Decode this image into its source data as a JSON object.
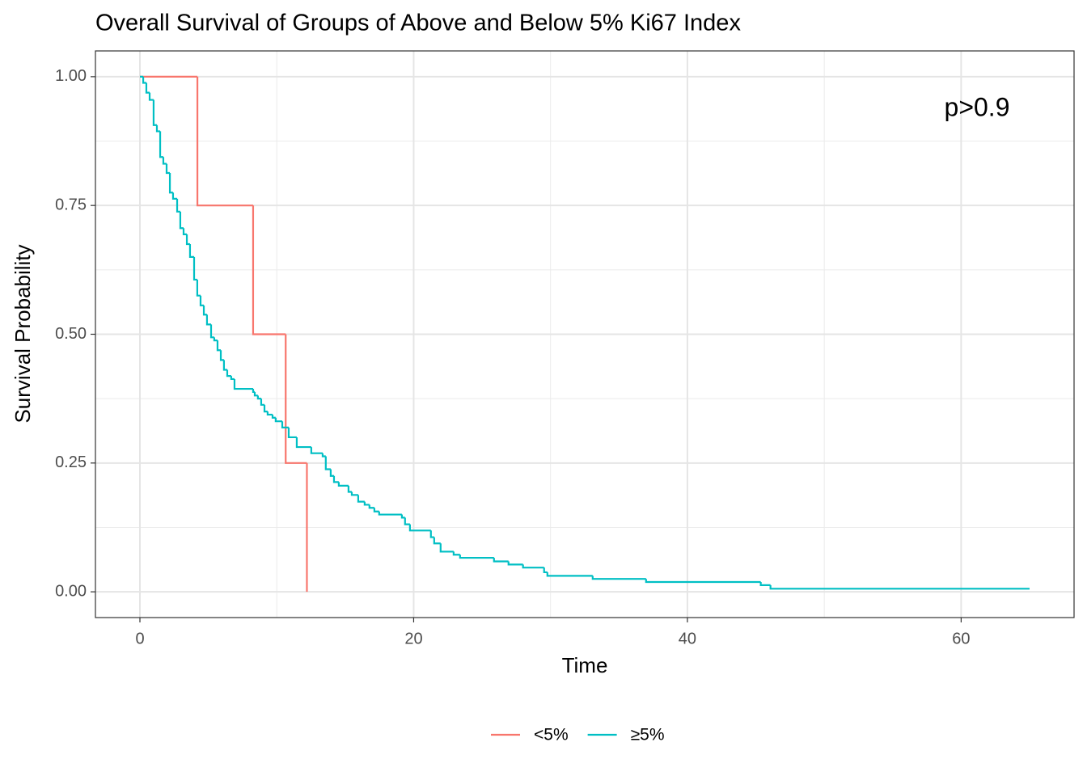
{
  "chart_data": {
    "type": "step",
    "title": "Overall Survival of Groups of Above and Below 5% Ki67 Index",
    "x_label": "Time",
    "y_label": "Survival Probability",
    "annotation": "p>0.9",
    "xlim": [
      -3.25,
      68.25
    ],
    "xticks": [
      0,
      20,
      40,
      60
    ],
    "ylim": [
      -0.05,
      1.05
    ],
    "yticks": [
      {
        "value": 0,
        "label": "0.00"
      },
      {
        "value": 0.25,
        "label": "0.25"
      },
      {
        "value": 0.5,
        "label": "0.50"
      },
      {
        "value": 0.75,
        "label": "0.75"
      },
      {
        "value": 1,
        "label": "1.00"
      }
    ],
    "grid": true,
    "legend": "bottom",
    "series": [
      {
        "name": "<5%",
        "color": "#F8766D",
        "x": [
          0,
          4.2,
          8.27,
          10.65,
          12.2
        ],
        "values": [
          1,
          0.75,
          0.5,
          0.25,
          0
        ]
      },
      {
        "name": "≥5%",
        "color": "#00BFC4",
        "x": [
          0,
          0.24,
          0.47,
          0.71,
          1.0,
          1.24,
          1.48,
          1.71,
          1.95,
          2.19,
          2.42,
          2.72,
          2.95,
          3.19,
          3.43,
          3.66,
          3.96,
          4.19,
          4.43,
          4.67,
          4.9,
          5.2,
          5.43,
          5.67,
          5.91,
          6.14,
          6.38,
          6.67,
          6.91,
          8.27,
          8.39,
          8.62,
          8.86,
          9.1,
          9.33,
          9.69,
          9.92,
          10.4,
          10.87,
          11.46,
          12.52,
          13.35,
          13.58,
          13.94,
          14.18,
          14.53,
          15.24,
          15.48,
          15.95,
          16.42,
          16.77,
          17.13,
          17.48,
          19.14,
          19.37,
          19.73,
          21.26,
          21.5,
          21.97,
          22.92,
          23.39,
          25.87,
          26.93,
          27.99,
          29.53,
          29.77,
          33.08,
          36.98,
          45.36,
          46.07,
          65.0
        ],
        "values": [
          1,
          0.988,
          0.969,
          0.955,
          0.906,
          0.894,
          0.844,
          0.831,
          0.813,
          0.775,
          0.763,
          0.738,
          0.706,
          0.694,
          0.675,
          0.65,
          0.606,
          0.575,
          0.556,
          0.538,
          0.519,
          0.494,
          0.488,
          0.469,
          0.45,
          0.431,
          0.419,
          0.413,
          0.394,
          0.388,
          0.381,
          0.375,
          0.363,
          0.35,
          0.344,
          0.338,
          0.331,
          0.319,
          0.3,
          0.281,
          0.269,
          0.263,
          0.238,
          0.225,
          0.213,
          0.206,
          0.194,
          0.188,
          0.175,
          0.169,
          0.163,
          0.156,
          0.15,
          0.144,
          0.131,
          0.119,
          0.106,
          0.094,
          0.078,
          0.072,
          0.066,
          0.059,
          0.053,
          0.047,
          0.038,
          0.031,
          0.025,
          0.019,
          0.013,
          0.006,
          0.006
        ]
      }
    ]
  }
}
